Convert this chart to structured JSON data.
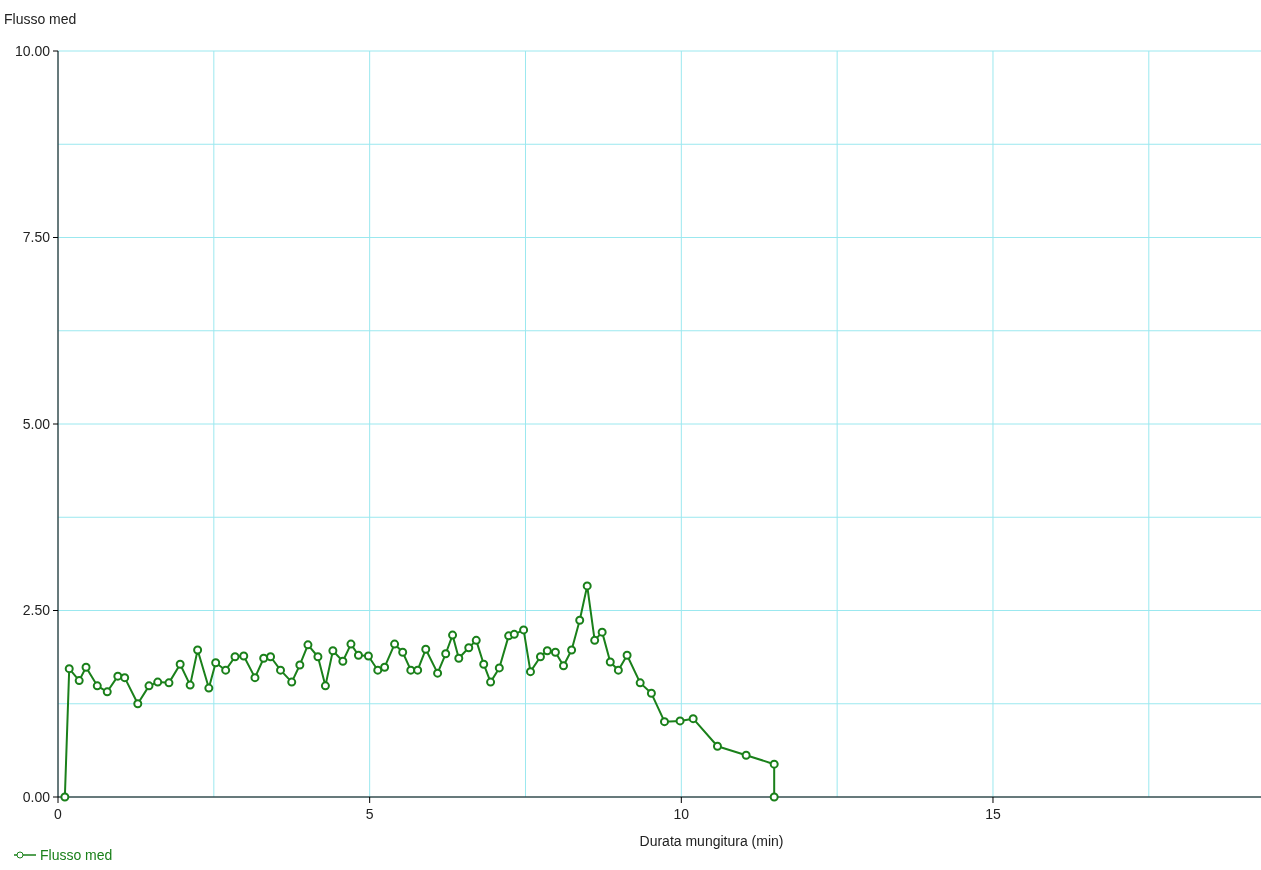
{
  "chart_data": {
    "type": "line",
    "xlabel": "Durata mungitura (min)",
    "ylabel": "Flusso med",
    "xlim": [
      0,
      19.3
    ],
    "ylim": [
      0,
      10
    ],
    "xticks": [
      0,
      {
        "value": 2.5,
        "label": null
      },
      5,
      {
        "value": 7.5,
        "label": null
      },
      10,
      {
        "value": 12.5,
        "label": null
      },
      15,
      {
        "value": 17.5,
        "label": null
      }
    ],
    "yticks": [
      {
        "value": 0,
        "label": "0.00"
      },
      {
        "value": 1.25,
        "label": null
      },
      {
        "value": 2.5,
        "label": "2.50"
      },
      {
        "value": 3.75,
        "label": null
      },
      {
        "value": 5,
        "label": "5.00"
      },
      {
        "value": 6.25,
        "label": null
      },
      {
        "value": 7.5,
        "label": "7.50"
      },
      {
        "value": 8.75,
        "label": null
      },
      {
        "value": 10,
        "label": "10.00"
      }
    ],
    "grid": true,
    "legend": "bottom left",
    "marker": "circle",
    "line_style": "solid",
    "series": [
      {
        "name": "Flusso med",
        "color": "#1a801a",
        "x": [
          0.11,
          0.18,
          0.34,
          0.45,
          0.63,
          0.79,
          0.96,
          1.07,
          1.28,
          1.46,
          1.6,
          1.78,
          1.96,
          2.12,
          2.24,
          2.42,
          2.53,
          2.69,
          2.84,
          2.98,
          3.16,
          3.3,
          3.41,
          3.57,
          3.75,
          3.88,
          4.01,
          4.17,
          4.29,
          4.41,
          4.57,
          4.7,
          4.82,
          4.98,
          5.13,
          5.24,
          5.4,
          5.53,
          5.66,
          5.77,
          5.9,
          6.09,
          6.22,
          6.33,
          6.43,
          6.59,
          6.71,
          6.83,
          6.94,
          7.08,
          7.23,
          7.32,
          7.47,
          7.58,
          7.74,
          7.85,
          7.98,
          8.11,
          8.24,
          8.37,
          8.49,
          8.61,
          8.73,
          8.86,
          8.99,
          9.13,
          9.34,
          9.52,
          9.73,
          9.98,
          10.19,
          10.58,
          11.04,
          11.49,
          11.49
        ],
        "values": [
          0,
          1.72,
          1.56,
          1.74,
          1.49,
          1.41,
          1.62,
          1.6,
          1.25,
          1.49,
          1.54,
          1.53,
          1.78,
          1.5,
          1.97,
          1.46,
          1.8,
          1.7,
          1.88,
          1.89,
          1.6,
          1.86,
          1.88,
          1.7,
          1.54,
          1.77,
          2.04,
          1.88,
          1.49,
          1.96,
          1.82,
          2.05,
          1.9,
          1.89,
          1.7,
          1.74,
          2.05,
          1.94,
          1.7,
          1.7,
          1.98,
          1.66,
          1.92,
          2.17,
          1.86,
          2,
          2.1,
          1.78,
          1.54,
          1.73,
          2.16,
          2.18,
          2.24,
          1.68,
          1.88,
          1.96,
          1.94,
          1.76,
          1.97,
          2.37,
          2.83,
          2.1,
          2.21,
          1.81,
          1.7,
          1.9,
          1.53,
          1.39,
          1.01,
          1.02,
          1.05,
          0.68,
          0.56,
          0.44,
          0
        ]
      }
    ]
  }
}
